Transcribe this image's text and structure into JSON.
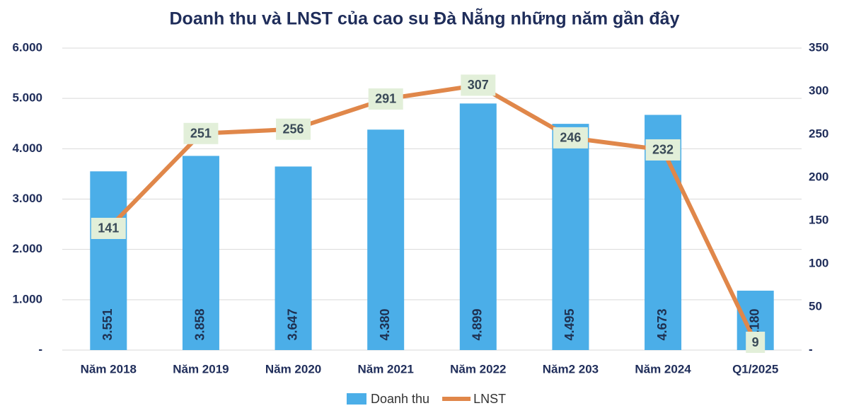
{
  "chart_data": {
    "type": "combo",
    "title": "Doanh thu và LNST của cao su Đà Nẵng những năm gần đây",
    "categories": [
      "Năm 2018",
      "Năm 2019",
      "Năm 2020",
      "Năm 2021",
      "Năm 2022",
      "Năm2 203",
      "Năm 2024",
      "Q1/2025"
    ],
    "series": [
      {
        "name": "Doanh thu",
        "type": "bar",
        "color": "#4baee8",
        "values": [
          3551,
          3858,
          3647,
          4380,
          4899,
          4495,
          4673,
          1180
        ],
        "value_labels": [
          "3.551",
          "3.858",
          "3.647",
          "4.380",
          "4.899",
          "4.495",
          "4.673",
          "1.180"
        ]
      },
      {
        "name": "LNST",
        "type": "line",
        "axis": "y2",
        "color": "#e0874a",
        "values": [
          141,
          251,
          256,
          291,
          307,
          246,
          232,
          9
        ]
      }
    ],
    "ylim": [
      0,
      6000
    ],
    "yticks": [
      {
        "value": 0,
        "label": "-"
      },
      {
        "value": 1000,
        "label": "1.000"
      },
      {
        "value": 2000,
        "label": "2.000"
      },
      {
        "value": 3000,
        "label": "3.000"
      },
      {
        "value": 4000,
        "label": "4.000"
      },
      {
        "value": 5000,
        "label": "5.000"
      },
      {
        "value": 6000,
        "label": "6.000"
      }
    ],
    "y2lim": [
      0,
      350
    ],
    "y2ticks": [
      {
        "value": 0,
        "label": "-"
      },
      50,
      100,
      150,
      200,
      250,
      300,
      350
    ],
    "grid": true,
    "legend": "bottom"
  }
}
